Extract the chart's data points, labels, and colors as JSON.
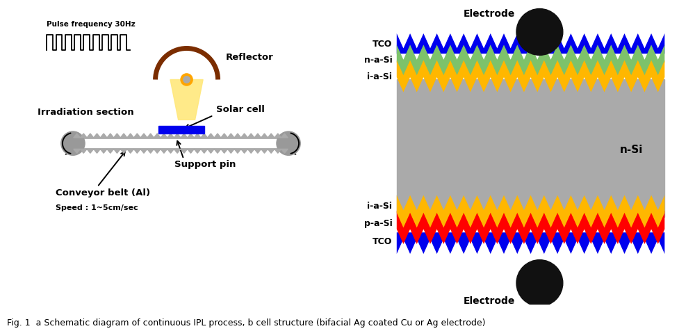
{
  "fig_width": 10.0,
  "fig_height": 4.76,
  "bg_color": "#ffffff",
  "caption": "Fig. 1  a Schematic diagram of continuous IPL process, b cell structure (bifacial Ag coated Cu or Ag electrode)",
  "caption_fontsize": 9,
  "left_panel": {
    "pulse_label": "Pulse frequency 30Hz",
    "reflector_label": "Reflector",
    "irradiation_label": "Irradiation section",
    "solar_cell_label": "Solar cell",
    "support_pin_label": "Support pin",
    "conveyor_label": "Conveyor belt (Al)",
    "speed_label": "Speed : 1~5cm/sec",
    "reflector_color": "#7B2D00",
    "lamp_color": "#FFA500",
    "lamp_center_color": "#AAAAAA",
    "light_color": "#FFE87C",
    "solar_cell_color": "#0000EE",
    "belt_color": "#AAAAAA",
    "roller_color": "#999999",
    "spike_color": "#AAAAAA"
  },
  "right_panel": {
    "tco_color": "#0000EE",
    "n_a_si_color": "#7DC26B",
    "i_a_si_color": "#FFB700",
    "n_si_color": "#AAAAAA",
    "p_a_si_color": "#FF0000",
    "electrode_color": "#111111",
    "label_nsi": "n-Si",
    "label_electrode": "Electrode"
  }
}
